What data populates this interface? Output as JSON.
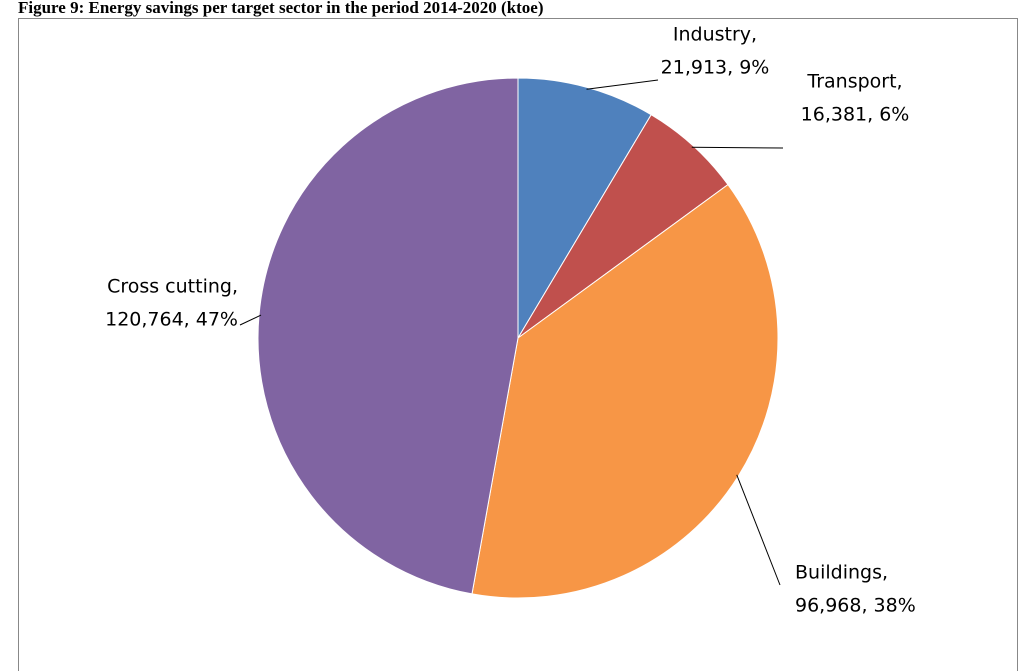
{
  "chart_data": {
    "type": "pie",
    "title": "Figure 9: Energy savings per target sector in the period 2014-2020 (ktoe)",
    "categories": [
      "Industry,",
      "Transport,",
      "Buildings,",
      "Cross cutting,"
    ],
    "values": [
      21913,
      16381,
      96968,
      120764
    ],
    "value_labels": [
      "21,913, 9%",
      "16,381, 6%",
      "96,968, 38%",
      "120,764, 47%"
    ],
    "colors": [
      "#4f81bd",
      "#c0504d",
      "#f79646",
      "#8064a2"
    ]
  }
}
